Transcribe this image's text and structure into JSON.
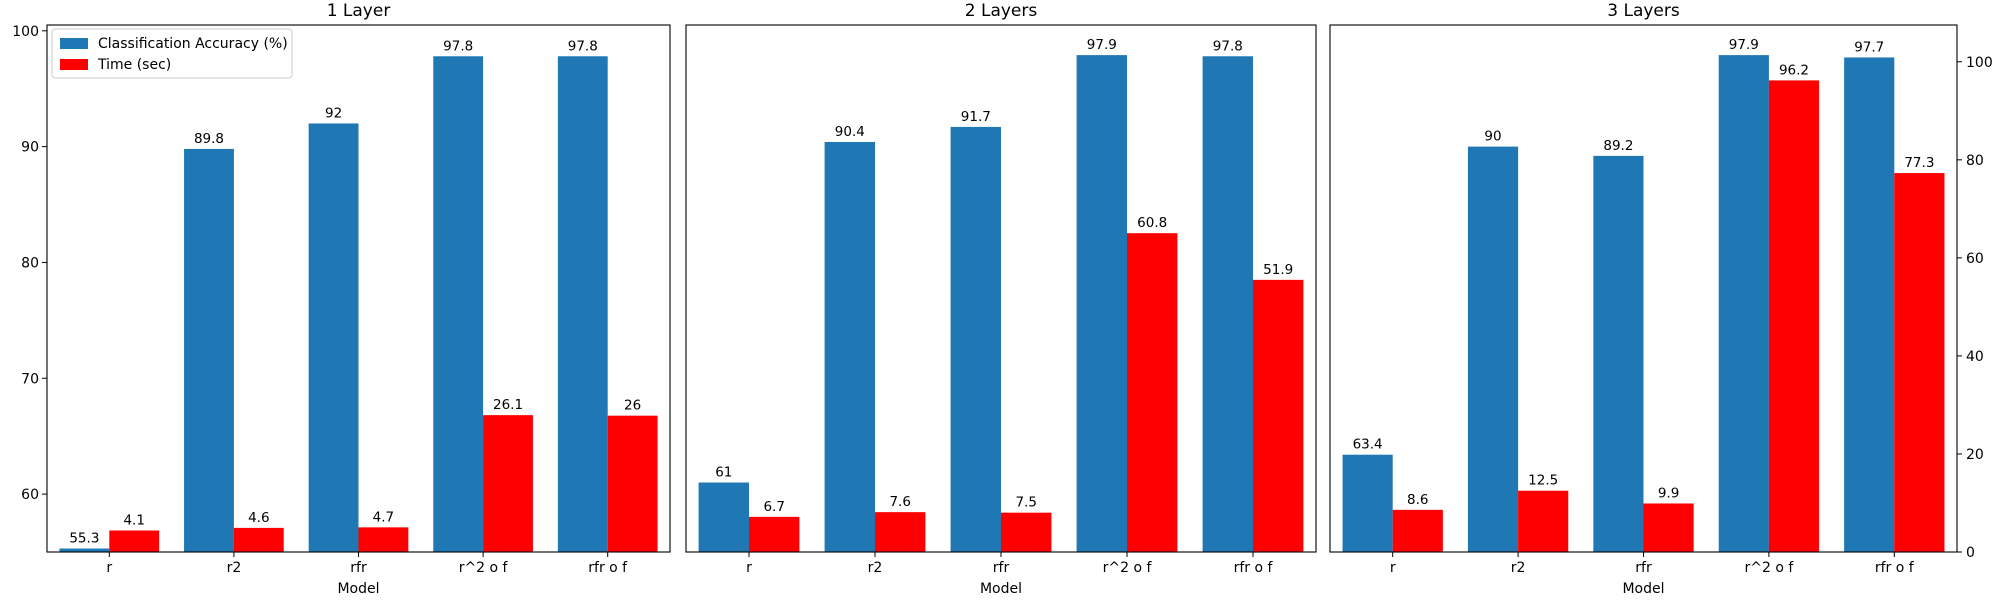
{
  "chart_data": [
    {
      "type": "bar",
      "title": "1 Layer",
      "xlabel": "Model",
      "categories": [
        "r",
        "r2",
        "rfr",
        "r^2 o f",
        "rfr o f"
      ],
      "accuracy_ylim": [
        55,
        100.5
      ],
      "accuracy_yticks": [
        60,
        70,
        80,
        90,
        100
      ],
      "time_ylim": [
        0,
        100.5
      ],
      "legend": "top-left",
      "series": [
        {
          "name": "Classification Accuracy (%)",
          "color": "#1f77b4",
          "axis": "left",
          "values": [
            55.3,
            89.8,
            92,
            97.8,
            97.8
          ],
          "labels": [
            "55.3",
            "89.8",
            "92",
            "97.8",
            "97.8"
          ]
        },
        {
          "name": "Time (sec)",
          "color": "#ff0000",
          "axis": "right",
          "values": [
            4.1,
            4.6,
            4.7,
            26.1,
            26
          ],
          "labels": [
            "4.1",
            "4.6",
            "4.7",
            "26.1",
            "26"
          ]
        }
      ]
    },
    {
      "type": "bar",
      "title": "2 Layers",
      "xlabel": "Model",
      "categories": [
        "r",
        "r2",
        "rfr",
        "r^2 o f",
        "rfr o f"
      ],
      "accuracy_ylim": [
        55,
        100.5
      ],
      "time_ylim": [
        0,
        100.5
      ],
      "series": [
        {
          "name": "Classification Accuracy (%)",
          "color": "#1f77b4",
          "axis": "left",
          "values": [
            61,
            90.4,
            91.7,
            97.9,
            97.8
          ],
          "labels": [
            "61",
            "90.4",
            "91.7",
            "97.9",
            "97.8"
          ]
        },
        {
          "name": "Time (sec)",
          "color": "#ff0000",
          "axis": "right",
          "values": [
            6.7,
            7.6,
            7.5,
            60.8,
            51.9
          ],
          "labels": [
            "6.7",
            "7.6",
            "7.5",
            "60.8",
            "51.9"
          ]
        }
      ]
    },
    {
      "type": "bar",
      "title": "3 Layers",
      "xlabel": "Model",
      "categories": [
        "r",
        "r2",
        "rfr",
        "r^2 o f",
        "rfr o f"
      ],
      "accuracy_ylim": [
        55,
        100.5
      ],
      "time_ylim": [
        0,
        107.5
      ],
      "time_yticks": [
        0,
        20,
        40,
        60,
        80,
        100
      ],
      "series": [
        {
          "name": "Classification Accuracy (%)",
          "color": "#1f77b4",
          "axis": "left",
          "values": [
            63.4,
            90,
            89.2,
            97.9,
            97.7
          ],
          "labels": [
            "63.4",
            "90",
            "89.2",
            "97.9",
            "97.7"
          ]
        },
        {
          "name": "Time (sec)",
          "color": "#ff0000",
          "axis": "right",
          "values": [
            8.6,
            12.5,
            9.9,
            96.2,
            77.3
          ],
          "labels": [
            "8.6",
            "12.5",
            "9.9",
            "96.2",
            "77.3"
          ]
        }
      ]
    }
  ]
}
